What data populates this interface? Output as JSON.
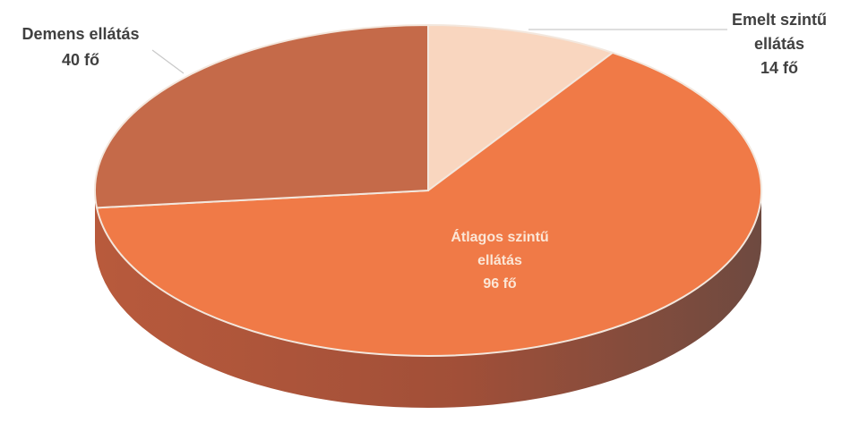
{
  "chart_data": {
    "type": "pie",
    "style": "3d",
    "categories": [
      "Emelt szintű ellátás",
      "Átlagos szintű ellátás",
      "Demens ellátás"
    ],
    "values": [
      14,
      96,
      40
    ],
    "labels": [
      {
        "lines": [
          "Emelt szintű",
          "ellátás",
          "14 fő"
        ]
      },
      {
        "lines": [
          "Átlagos szintű",
          "ellátás",
          "96 fő"
        ]
      },
      {
        "lines": [
          "Demens ellátás",
          "40 fő"
        ]
      }
    ],
    "colors": {
      "top": [
        "#f9d6bf",
        "#f07a47",
        "#c56a49"
      ],
      "side": [
        "#c89b80",
        "#a9553a",
        "#93503a"
      ],
      "edge": "#f3e7dd",
      "text_inside": "#fbe6d6",
      "text_outside": "#404040"
    },
    "legend": "none",
    "title": ""
  }
}
